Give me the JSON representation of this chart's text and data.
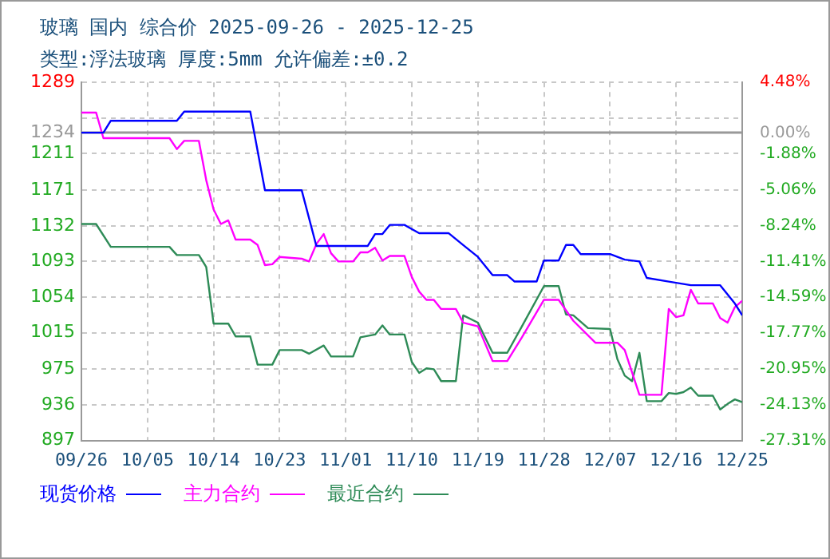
{
  "chart_data": {
    "type": "line",
    "title": "玻璃 国内 综合价 2025-09-26 - 2025-12-25",
    "subtitle": "类型:浮法玻璃 厚度:5mm 允许偏差:±0.2",
    "xlim": [
      "2025-09-26",
      "2025-12-25"
    ],
    "xticks": [
      {
        "value": "2025-09-26",
        "label": "09/26"
      },
      {
        "value": "2025-10-05",
        "label": "10/05"
      },
      {
        "value": "2025-10-14",
        "label": "10/14"
      },
      {
        "value": "2025-10-23",
        "label": "10/23"
      },
      {
        "value": "2025-11-01",
        "label": "11/01"
      },
      {
        "value": "2025-11-10",
        "label": "11/10"
      },
      {
        "value": "2025-11-19",
        "label": "11/19"
      },
      {
        "value": "2025-11-28",
        "label": "11/28"
      },
      {
        "value": "2025-12-07",
        "label": "12/07"
      },
      {
        "value": "2025-12-16",
        "label": "12/16"
      },
      {
        "value": "2025-12-25",
        "label": "12/25"
      }
    ],
    "ylim": [
      897,
      1289
    ],
    "yticks": [
      897,
      936,
      975,
      1015,
      1054,
      1093,
      1132,
      1171,
      1211,
      1234,
      {
        "value": 1250,
        "label": null
      },
      1289
    ],
    "y2lim": [
      -27.31,
      4.48
    ],
    "y2ticks": [
      {
        "value": -27.31,
        "label": "-27.31%"
      },
      {
        "value": -24.13,
        "label": "-24.13%"
      },
      {
        "value": -20.95,
        "label": "-20.95%"
      },
      {
        "value": -17.77,
        "label": "-17.77%"
      },
      {
        "value": -14.59,
        "label": "-14.59%"
      },
      {
        "value": -11.41,
        "label": "-11.41%"
      },
      {
        "value": -8.24,
        "label": "-8.24%"
      },
      {
        "value": -5.06,
        "label": "-5.06%"
      },
      {
        "value": -1.88,
        "label": "-1.88%"
      },
      {
        "value": 0,
        "label": "0.00%"
      },
      {
        "value": 4.48,
        "label": "4.48%"
      }
    ],
    "ref_lines": [
      {
        "axis": "y",
        "value": 1234,
        "color": "#999999"
      }
    ],
    "grid": true,
    "legend": "bottom",
    "marker": "none",
    "line_style": "solid",
    "series": [
      {
        "name": "现货价格",
        "color": "#0000ff",
        "x": [
          "2025-09-26",
          "2025-09-29",
          "2025-09-30",
          "2025-10-09",
          "2025-10-10",
          "2025-10-19",
          "2025-10-21",
          "2025-10-26",
          "2025-10-28",
          "2025-11-04",
          "2025-11-05",
          "2025-11-06",
          "2025-11-07",
          "2025-11-09",
          "2025-11-11",
          "2025-11-15",
          "2025-11-17",
          "2025-11-19",
          "2025-11-21",
          "2025-11-23",
          "2025-11-24",
          "2025-11-27",
          "2025-11-28",
          "2025-11-30",
          "2025-12-01",
          "2025-12-02",
          "2025-12-03",
          "2025-12-07",
          "2025-12-09",
          "2025-12-11",
          "2025-12-12",
          "2025-12-15",
          "2025-12-18",
          "2025-12-22",
          "2025-12-24",
          "2025-12-25"
        ],
        "values": [
          1234,
          1234,
          1247,
          1247,
          1257,
          1257,
          1171,
          1171,
          1110,
          1110,
          1123,
          1123,
          1133,
          1133,
          1124,
          1124,
          1111,
          1098,
          1078,
          1078,
          1071,
          1071,
          1094,
          1094,
          1111,
          1111,
          1101,
          1101,
          1095,
          1093,
          1075,
          1071,
          1067,
          1067,
          1047,
          1034
        ]
      },
      {
        "name": "主力合约",
        "color": "#ff00ff",
        "x": [
          "2025-09-26",
          "2025-09-28",
          "2025-09-29",
          "2025-10-08",
          "2025-10-09",
          "2025-10-10",
          "2025-10-12",
          "2025-10-13",
          "2025-10-14",
          "2025-10-15",
          "2025-10-16",
          "2025-10-17",
          "2025-10-19",
          "2025-10-20",
          "2025-10-21",
          "2025-10-22",
          "2025-10-23",
          "2025-10-26",
          "2025-10-27",
          "2025-10-28",
          "2025-10-29",
          "2025-10-30",
          "2025-10-31",
          "2025-11-02",
          "2025-11-03",
          "2025-11-04",
          "2025-11-05",
          "2025-11-06",
          "2025-11-07",
          "2025-11-09",
          "2025-11-10",
          "2025-11-11",
          "2025-11-12",
          "2025-11-13",
          "2025-11-14",
          "2025-11-16",
          "2025-11-17",
          "2025-11-19",
          "2025-11-21",
          "2025-11-23",
          "2025-11-25",
          "2025-11-28",
          "2025-11-30",
          "2025-12-02",
          "2025-12-05",
          "2025-12-08",
          "2025-12-09",
          "2025-12-11",
          "2025-12-14",
          "2025-12-15",
          "2025-12-16",
          "2025-12-17",
          "2025-12-18",
          "2025-12-19",
          "2025-12-21",
          "2025-12-22",
          "2025-12-23",
          "2025-12-24",
          "2025-12-25"
        ],
        "values": [
          1256,
          1256,
          1228,
          1228,
          1216,
          1225,
          1225,
          1182,
          1150,
          1134,
          1138,
          1117,
          1117,
          1111,
          1089,
          1090,
          1098,
          1096,
          1093,
          1112,
          1123,
          1102,
          1093,
          1093,
          1103,
          1103,
          1108,
          1094,
          1099,
          1099,
          1076,
          1060,
          1051,
          1051,
          1041,
          1041,
          1026,
          1022,
          984,
          984,
          1010,
          1051,
          1051,
          1028,
          1004,
          1004,
          996,
          947,
          947,
          1041,
          1032,
          1034,
          1062,
          1047,
          1047,
          1031,
          1026,
          1043,
          1050
        ]
      },
      {
        "name": "最近合约",
        "color": "#2e8b57",
        "x": [
          "2025-09-26",
          "2025-09-28",
          "2025-09-30",
          "2025-10-08",
          "2025-10-09",
          "2025-10-12",
          "2025-10-13",
          "2025-10-14",
          "2025-10-16",
          "2025-10-17",
          "2025-10-19",
          "2025-10-20",
          "2025-10-22",
          "2025-10-23",
          "2025-10-26",
          "2025-10-27",
          "2025-10-29",
          "2025-10-30",
          "2025-11-02",
          "2025-11-03",
          "2025-11-05",
          "2025-11-06",
          "2025-11-07",
          "2025-11-09",
          "2025-11-10",
          "2025-11-11",
          "2025-11-12",
          "2025-11-13",
          "2025-11-14",
          "2025-11-16",
          "2025-11-17",
          "2025-11-19",
          "2025-11-21",
          "2025-11-23",
          "2025-11-25",
          "2025-11-28",
          "2025-11-30",
          "2025-12-01",
          "2025-12-02",
          "2025-12-04",
          "2025-12-07",
          "2025-12-08",
          "2025-12-09",
          "2025-12-10",
          "2025-12-11",
          "2025-12-12",
          "2025-12-14",
          "2025-12-15",
          "2025-12-16",
          "2025-12-17",
          "2025-12-18",
          "2025-12-19",
          "2025-12-21",
          "2025-12-22",
          "2025-12-23",
          "2025-12-24",
          "2025-12-25"
        ],
        "values": [
          1134,
          1134,
          1109,
          1109,
          1100,
          1100,
          1087,
          1025,
          1025,
          1011,
          1011,
          980,
          980,
          996,
          996,
          992,
          1001,
          989,
          989,
          1010,
          1013,
          1023,
          1013,
          1013,
          983,
          971,
          976,
          975,
          962,
          962,
          1034,
          1026,
          993,
          993,
          1022,
          1066,
          1066,
          1035,
          1034,
          1020,
          1019,
          986,
          968,
          962,
          993,
          940,
          940,
          949,
          948,
          950,
          955,
          946,
          946,
          931,
          937,
          942,
          939
        ]
      }
    ]
  }
}
